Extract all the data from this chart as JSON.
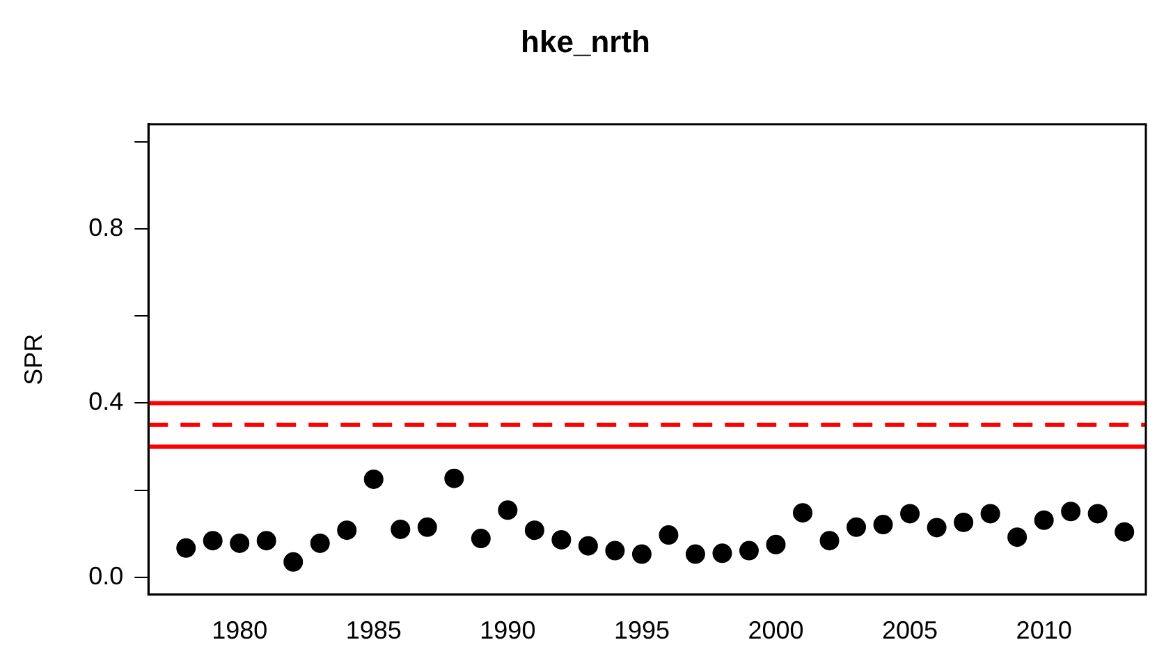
{
  "chart_data": {
    "type": "scatter",
    "title": "hke_nrth",
    "ylabel": "SPR",
    "x": [
      1978,
      1979,
      1980,
      1981,
      1982,
      1983,
      1984,
      1985,
      1986,
      1987,
      1988,
      1989,
      1990,
      1991,
      1992,
      1993,
      1994,
      1995,
      1996,
      1997,
      1998,
      1999,
      2000,
      2001,
      2002,
      2003,
      2004,
      2005,
      2006,
      2007,
      2008,
      2009,
      2010,
      2011,
      2012,
      2013
    ],
    "series": [
      {
        "color": "#000000",
        "values": [
          0.067,
          0.084,
          0.078,
          0.084,
          0.035,
          0.078,
          0.108,
          0.225,
          0.11,
          0.115,
          0.227,
          0.089,
          0.154,
          0.108,
          0.086,
          0.072,
          0.061,
          0.053,
          0.097,
          0.053,
          0.055,
          0.061,
          0.075,
          0.148,
          0.084,
          0.115,
          0.121,
          0.146,
          0.114,
          0.126,
          0.146,
          0.092,
          0.131,
          0.151,
          0.146,
          0.104
        ]
      }
    ],
    "marker": "circle",
    "xlim": [
      1976.6,
      2013.8
    ],
    "xticks": [
      1980,
      1985,
      1990,
      1995,
      2000,
      2005,
      2010
    ],
    "ylim": [
      -0.04,
      1.04
    ],
    "yticks": [
      {
        "value": 0,
        "label": "0.0"
      },
      {
        "value": 0.2,
        "label": null
      },
      {
        "value": 0.4,
        "label": "0.4"
      },
      {
        "value": 0.6,
        "label": null
      },
      {
        "value": 0.8,
        "label": "0.8"
      },
      {
        "value": 1,
        "label": null
      }
    ],
    "ref_lines": [
      {
        "axis": "y",
        "value": 0.4,
        "color": "#ff0000",
        "line_style": "solid"
      },
      {
        "axis": "y",
        "value": 0.35,
        "color": "#ff0000",
        "line_style": "dashed"
      },
      {
        "axis": "y",
        "value": 0.3,
        "color": "#ff0000",
        "line_style": "solid"
      }
    ],
    "grid": false,
    "legend": false
  }
}
